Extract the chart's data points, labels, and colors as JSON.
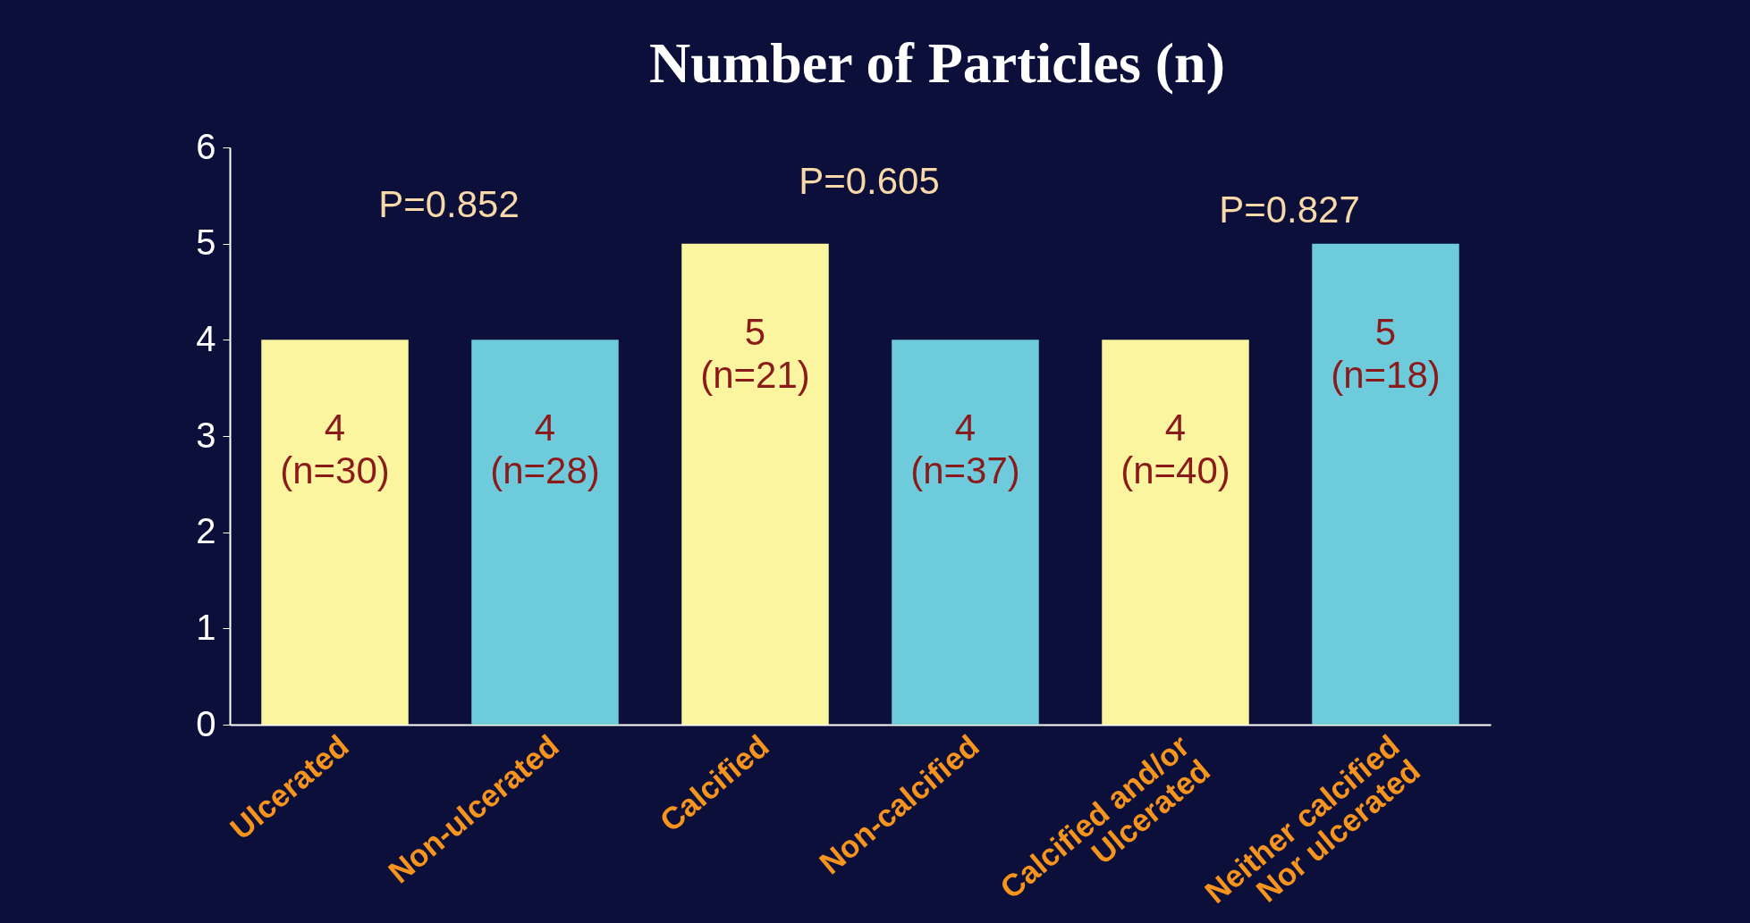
{
  "chart_data": {
    "type": "bar",
    "title": "Number of Particles (n)",
    "categories": [
      "Ulcerated",
      "Non-ulcerated",
      "Calcified",
      "Non-calcified",
      "Calcified and/or\nUlcerated",
      "Neither calcified\nNor ulcerated"
    ],
    "values": [
      4,
      4,
      5,
      4,
      4,
      5
    ],
    "colors": [
      "#fbf59f",
      "#6ecbdc",
      "#fbf59f",
      "#6ecbdc",
      "#fbf59f",
      "#6ecbdc"
    ],
    "value_labels": [
      "4\n(n=30)",
      "4\n(n=28)",
      "5\n(n=21)",
      "4\n(n=37)",
      "4\n(n=40)",
      "5\n(n=18)"
    ],
    "annotations": [
      "P=0.852",
      "P=0.605",
      "P=0.827"
    ],
    "ylim": [
      0,
      6
    ],
    "yticks": [
      0,
      1,
      2,
      3,
      4,
      5,
      6
    ],
    "grid": false
  }
}
